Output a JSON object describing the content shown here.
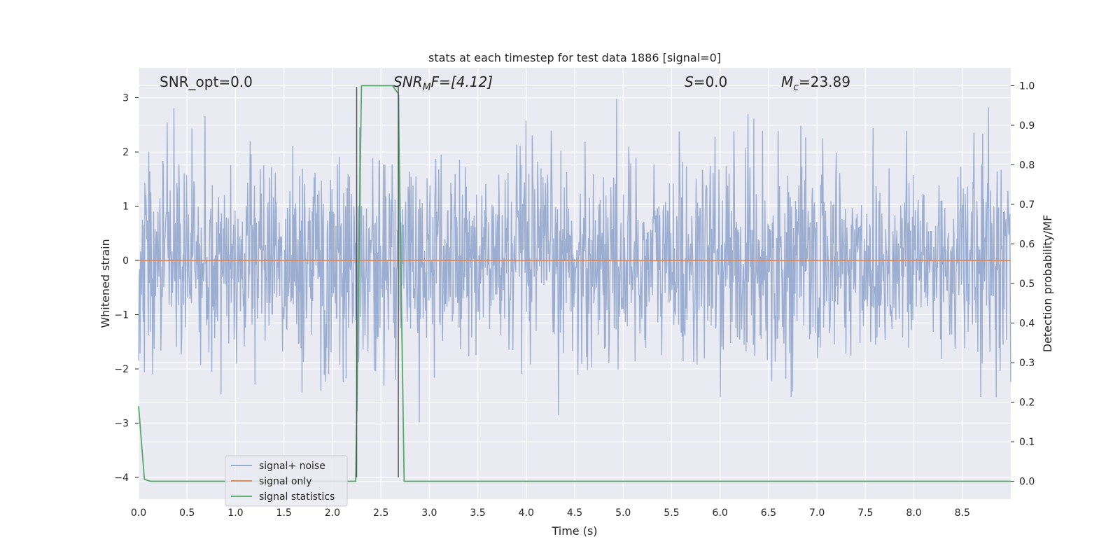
{
  "chart_data": {
    "type": "line",
    "title": "stats at each timestep for test data 1886 [signal=0]",
    "xlabel": "Time (s)",
    "ylabel": "Whitened strain",
    "y2label": "Detection probability/MF",
    "xlim": [
      0.0,
      9.0
    ],
    "ylim": [
      -4.4,
      3.55
    ],
    "y2lim": [
      -0.045,
      1.045
    ],
    "xticks": [
      0.0,
      0.5,
      1.0,
      1.5,
      2.0,
      2.5,
      3.0,
      3.5,
      4.0,
      4.5,
      5.0,
      5.5,
      6.0,
      6.5,
      7.0,
      7.5,
      8.0,
      8.5
    ],
    "xtick_labels": [
      "0.0",
      "0.5",
      "1.0",
      "1.5",
      "2.0",
      "2.5",
      "3.0",
      "3.5",
      "4.0",
      "4.5",
      "5.0",
      "5.5",
      "6.0",
      "6.5",
      "7.0",
      "7.5",
      "8.0",
      "8.5"
    ],
    "yticks": [
      -4,
      -3,
      -2,
      -1,
      0,
      1,
      2,
      3
    ],
    "ytick_labels": [
      "−4",
      "−3",
      "−2",
      "−1",
      "0",
      "1",
      "2",
      "3"
    ],
    "y2ticks": [
      0.0,
      0.1,
      0.2,
      0.3,
      0.4,
      0.5,
      0.6,
      0.7,
      0.8,
      0.9,
      1.0
    ],
    "y2tick_labels": [
      "0.0",
      "0.1",
      "0.2",
      "0.3",
      "0.4",
      "0.5",
      "0.6",
      "0.7",
      "0.8",
      "0.9",
      "1.0"
    ],
    "grid": true,
    "legend_position": "lower-left",
    "annotations": {
      "snr_opt": "SNR_opt=0.0",
      "snr_mf_main": "SNR",
      "snr_mf_sub": "M",
      "snr_mf_rest": "F=[4.12]",
      "s_main": "S",
      "s_rest": "=0.0",
      "mc_main": "M",
      "mc_sub": "c",
      "mc_rest": "=23.89"
    },
    "series": [
      {
        "name": "signal+ noise",
        "color": "#4c72b0",
        "axis": "left",
        "kind": "noise",
        "duration": 9.0,
        "sample_count": 1800,
        "sigma": 0.95,
        "range": [
          -4.0,
          3.05
        ]
      },
      {
        "name": "signal only",
        "color": "#dd8452",
        "axis": "left",
        "x": [
          0.0,
          9.0
        ],
        "y": [
          0.0,
          0.0
        ]
      },
      {
        "name": "signal statistics",
        "color": "#55a868",
        "axis": "right",
        "x": [
          0.0,
          0.06,
          0.12,
          2.24,
          2.3,
          2.4,
          2.62,
          2.68,
          2.74,
          9.0
        ],
        "y": [
          0.19,
          0.005,
          0.0,
          0.0,
          1.0,
          1.0,
          1.0,
          0.98,
          0.0,
          0.0
        ]
      }
    ],
    "vlines": [
      {
        "x": 2.25,
        "ymin": -4.0,
        "ymax": 3.2,
        "color": "#555555"
      },
      {
        "x": 2.68,
        "ymin": -4.0,
        "ymax": 3.2,
        "color": "#555555"
      }
    ]
  }
}
